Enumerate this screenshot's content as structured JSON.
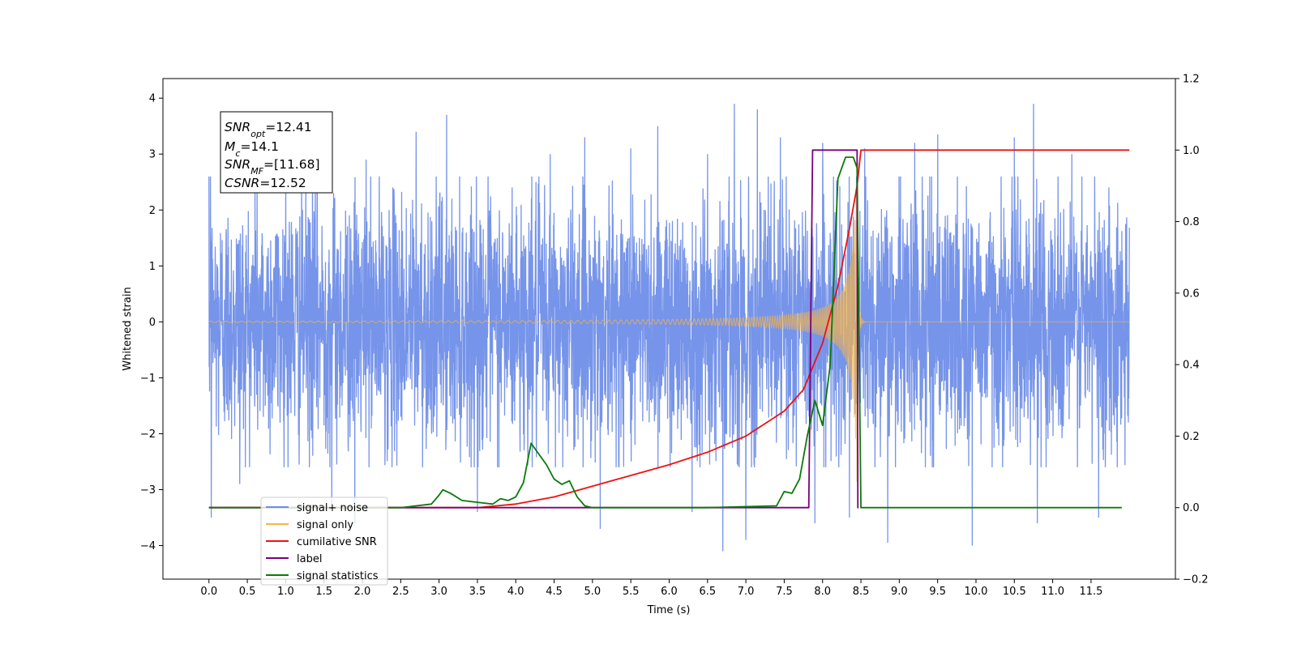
{
  "chart_data": {
    "type": "line",
    "xlabel": "Time (s)",
    "ylabel": "Whitened strain",
    "xlim": [
      -0.6,
      12.6
    ],
    "ylim": [
      -4.6,
      4.35
    ],
    "y2lim": [
      -0.2,
      1.2
    ],
    "x_ticks": [
      "0.0",
      "0.5",
      "1.0",
      "1.5",
      "2.0",
      "2.5",
      "3.0",
      "3.5",
      "4.0",
      "4.5",
      "5.0",
      "5.5",
      "6.0",
      "6.5",
      "7.0",
      "7.5",
      "8.0",
      "8.5",
      "9.0",
      "9.5",
      "10.0",
      "10.5",
      "11.0",
      "11.5"
    ],
    "y_ticks": [
      "4",
      "3",
      "2",
      "1",
      "0",
      "−1",
      "−2",
      "−3",
      "−4"
    ],
    "y2_ticks": [
      "1.2",
      "1.0",
      "0.8",
      "0.6",
      "0.4",
      "0.2",
      "0.0",
      "−0.2"
    ],
    "grid": false,
    "legend_position": "lower-left",
    "annotation": {
      "snr_opt_var": "SNR",
      "snr_opt_sub": "opt",
      "snr_opt_val": "=12.41",
      "mc_var": "M",
      "mc_sub": "c",
      "mc_val": "=14.1",
      "snr_mf_var": "SNR",
      "snr_mf_sub": "MF",
      "snr_mf_val": "=[11.68]",
      "csnr_var": "CSNR",
      "csnr_val": "=12.52"
    },
    "series": [
      {
        "name": "signal+ noise",
        "color": "#6f8ee8",
        "axis": "left",
        "noise_sigma": 1.1,
        "t_range": [
          0.0,
          12.0
        ],
        "spike_points": [
          [
            0.02,
            2.6
          ],
          [
            0.03,
            -3.5
          ],
          [
            0.4,
            -2.9
          ],
          [
            0.6,
            2.6
          ],
          [
            1.0,
            2.7
          ],
          [
            1.35,
            3.1
          ],
          [
            1.6,
            -3.3
          ],
          [
            1.9,
            -3.6
          ],
          [
            2.05,
            2.9
          ],
          [
            2.7,
            3.4
          ],
          [
            3.1,
            3.7
          ],
          [
            3.5,
            -3.4
          ],
          [
            4.45,
            3.0
          ],
          [
            4.9,
            3.3
          ],
          [
            5.1,
            -3.7
          ],
          [
            5.5,
            3.1
          ],
          [
            5.85,
            3.5
          ],
          [
            6.3,
            -3.4
          ],
          [
            6.5,
            3.0
          ],
          [
            6.7,
            -4.1
          ],
          [
            6.85,
            3.9
          ],
          [
            7.0,
            -3.9
          ],
          [
            7.15,
            3.8
          ],
          [
            7.45,
            3.3
          ],
          [
            7.9,
            -3.6
          ],
          [
            8.0,
            3.2
          ],
          [
            8.35,
            -3.5
          ],
          [
            8.55,
            3.1
          ],
          [
            8.85,
            -3.95
          ],
          [
            9.2,
            3.2
          ],
          [
            9.5,
            3.35
          ],
          [
            9.95,
            -4.0
          ],
          [
            10.5,
            3.3
          ],
          [
            10.75,
            3.9
          ],
          [
            10.8,
            -3.6
          ],
          [
            11.25,
            3.0
          ],
          [
            11.6,
            -3.5
          ]
        ]
      },
      {
        "name": "signal only",
        "color": "#f5b44a",
        "axis": "left",
        "chirp": {
          "t_merge": 8.45,
          "amp_max": 3.1,
          "f_start": 10,
          "f_end": 60
        }
      },
      {
        "name": "cumilative SNR",
        "color": "#ee1111",
        "axis": "right",
        "points": [
          [
            0.0,
            0.0
          ],
          [
            3.5,
            0.0
          ],
          [
            4.0,
            0.01
          ],
          [
            4.5,
            0.03
          ],
          [
            5.0,
            0.06
          ],
          [
            5.5,
            0.09
          ],
          [
            6.0,
            0.12
          ],
          [
            6.5,
            0.155
          ],
          [
            7.0,
            0.2
          ],
          [
            7.5,
            0.27
          ],
          [
            7.75,
            0.33
          ],
          [
            8.0,
            0.46
          ],
          [
            8.2,
            0.62
          ],
          [
            8.35,
            0.78
          ],
          [
            8.45,
            0.9
          ],
          [
            8.5,
            1.0
          ],
          [
            12.0,
            1.0
          ]
        ]
      },
      {
        "name": "label",
        "color": "#7a007a",
        "axis": "right",
        "points": [
          [
            0.0,
            0.0
          ],
          [
            7.82,
            0.0
          ],
          [
            7.87,
            1.0
          ],
          [
            8.45,
            1.0
          ],
          [
            8.46,
            0.0
          ],
          [
            8.47,
            0.0
          ]
        ]
      },
      {
        "name": "signal statistics",
        "color": "#0a7a0a",
        "axis": "right",
        "points": [
          [
            0.0,
            0.0
          ],
          [
            0.2,
            0.0
          ],
          [
            2.5,
            0.0
          ],
          [
            2.7,
            0.005
          ],
          [
            2.9,
            0.01
          ],
          [
            3.0,
            0.035
          ],
          [
            3.05,
            0.05
          ],
          [
            3.15,
            0.04
          ],
          [
            3.3,
            0.02
          ],
          [
            3.5,
            0.015
          ],
          [
            3.7,
            0.01
          ],
          [
            3.8,
            0.025
          ],
          [
            3.9,
            0.02
          ],
          [
            4.0,
            0.03
          ],
          [
            4.1,
            0.07
          ],
          [
            4.2,
            0.18
          ],
          [
            4.3,
            0.15
          ],
          [
            4.4,
            0.12
          ],
          [
            4.5,
            0.08
          ],
          [
            4.6,
            0.065
          ],
          [
            4.7,
            0.075
          ],
          [
            4.8,
            0.03
          ],
          [
            4.9,
            0.005
          ],
          [
            5.0,
            0.0
          ],
          [
            6.5,
            0.0
          ],
          [
            7.4,
            0.005
          ],
          [
            7.5,
            0.045
          ],
          [
            7.6,
            0.04
          ],
          [
            7.7,
            0.08
          ],
          [
            7.8,
            0.2
          ],
          [
            7.9,
            0.3
          ],
          [
            8.0,
            0.23
          ],
          [
            8.1,
            0.4
          ],
          [
            8.2,
            0.92
          ],
          [
            8.3,
            0.98
          ],
          [
            8.4,
            0.98
          ],
          [
            8.45,
            0.95
          ],
          [
            8.5,
            0.0
          ],
          [
            11.9,
            0.0
          ]
        ]
      }
    ],
    "legend_entries": [
      "signal+ noise",
      "signal only",
      "cumilative SNR",
      "label",
      "signal statistics"
    ]
  }
}
